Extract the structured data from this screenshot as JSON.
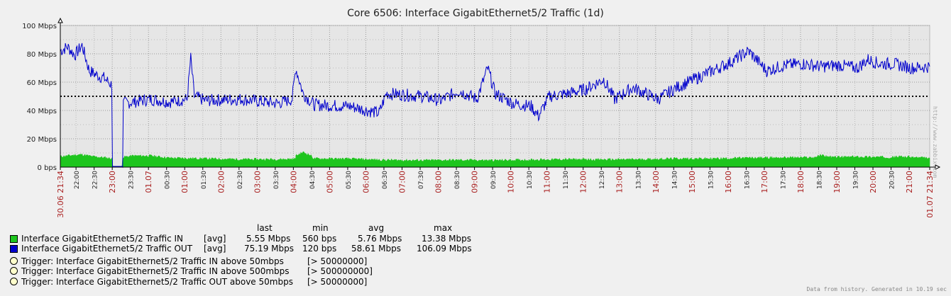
{
  "chart_data": {
    "type": "area",
    "title": "Core 6506: Interface GigabitEthernet5/2 Traffic  (1d)",
    "y_unit": "bps",
    "ylim": [
      0,
      100000000
    ],
    "yticks": [
      "0 bps",
      "20 Mbps",
      "40 Mbps",
      "60 Mbps",
      "80 Mbps",
      "100 Mbps"
    ],
    "grid": true,
    "x_tick_labels": [
      {
        "label": "30.06 21:34",
        "major": true
      },
      {
        "label": "22:00",
        "major": false
      },
      {
        "label": "22:30",
        "major": false
      },
      {
        "label": "23:00",
        "major": true
      },
      {
        "label": "23:30",
        "major": false
      },
      {
        "label": "01.07",
        "major": true
      },
      {
        "label": "00:30",
        "major": false
      },
      {
        "label": "01:00",
        "major": true
      },
      {
        "label": "01:30",
        "major": false
      },
      {
        "label": "02:00",
        "major": true
      },
      {
        "label": "02:30",
        "major": false
      },
      {
        "label": "03:00",
        "major": true
      },
      {
        "label": "03:30",
        "major": false
      },
      {
        "label": "04:00",
        "major": true
      },
      {
        "label": "04:30",
        "major": false
      },
      {
        "label": "05:00",
        "major": true
      },
      {
        "label": "05:30",
        "major": false
      },
      {
        "label": "06:00",
        "major": true
      },
      {
        "label": "06:30",
        "major": false
      },
      {
        "label": "07:00",
        "major": true
      },
      {
        "label": "07:30",
        "major": false
      },
      {
        "label": "08:00",
        "major": true
      },
      {
        "label": "08:30",
        "major": false
      },
      {
        "label": "09:00",
        "major": true
      },
      {
        "label": "09:30",
        "major": false
      },
      {
        "label": "10:00",
        "major": true
      },
      {
        "label": "10:30",
        "major": false
      },
      {
        "label": "11:00",
        "major": true
      },
      {
        "label": "11:30",
        "major": false
      },
      {
        "label": "12:00",
        "major": true
      },
      {
        "label": "12:30",
        "major": false
      },
      {
        "label": "13:00",
        "major": true
      },
      {
        "label": "13:30",
        "major": false
      },
      {
        "label": "14:00",
        "major": true
      },
      {
        "label": "14:30",
        "major": false
      },
      {
        "label": "15:00",
        "major": true
      },
      {
        "label": "15:30",
        "major": false
      },
      {
        "label": "16:00",
        "major": true
      },
      {
        "label": "16:30",
        "major": false
      },
      {
        "label": "17:00",
        "major": true
      },
      {
        "label": "17:30",
        "major": false
      },
      {
        "label": "18:00",
        "major": true
      },
      {
        "label": "18:30",
        "major": false
      },
      {
        "label": "19:00",
        "major": true
      },
      {
        "label": "19:30",
        "major": false
      },
      {
        "label": "20:00",
        "major": true
      },
      {
        "label": "20:30",
        "major": false
      },
      {
        "label": "21:00",
        "major": true
      },
      {
        "label": "01.07 21:34",
        "major": true
      }
    ],
    "series": [
      {
        "name": "Interface GigabitEthernet5/2 Traffic IN",
        "kind": "filled",
        "color": "#1ec51e",
        "agg": "[avg]",
        "last": "5.55 Mbps",
        "min": "560 bps",
        "avg": "5.76 Mbps",
        "max": "13.38 Mbps",
        "points_mbps": [
          [
            0,
            7.5
          ],
          [
            0.3,
            8.3
          ],
          [
            0.6,
            8.9
          ],
          [
            0.9,
            7.4
          ],
          [
            1.2,
            6.8
          ],
          [
            1.43,
            6.0
          ],
          [
            1.45,
            0.2
          ],
          [
            1.7,
            0.2
          ],
          [
            1.72,
            7.0
          ],
          [
            2.0,
            8.0
          ],
          [
            2.5,
            8.0
          ],
          [
            3.0,
            6.5
          ],
          [
            4.0,
            6.0
          ],
          [
            5.0,
            5.5
          ],
          [
            6.0,
            5.5
          ],
          [
            6.5,
            5.8
          ],
          [
            6.5,
            8.0
          ],
          [
            6.7,
            10.5
          ],
          [
            6.9,
            8.5
          ],
          [
            7.0,
            6.0
          ],
          [
            8.0,
            5.8
          ],
          [
            9.0,
            5.0
          ],
          [
            10.0,
            4.8
          ],
          [
            11.0,
            5.0
          ],
          [
            12.0,
            4.8
          ],
          [
            13.0,
            5.2
          ],
          [
            14.0,
            5.5
          ],
          [
            15.0,
            5.3
          ],
          [
            16.0,
            5.5
          ],
          [
            17.0,
            6.0
          ],
          [
            18.0,
            6.0
          ],
          [
            19.0,
            6.5
          ],
          [
            20.0,
            6.8
          ],
          [
            20.8,
            6.8
          ],
          [
            21.0,
            8.5
          ],
          [
            21.3,
            7.0
          ],
          [
            22.0,
            7.3
          ],
          [
            23.0,
            7.0
          ],
          [
            23.2,
            7.5
          ],
          [
            24.0,
            6.2
          ]
        ]
      },
      {
        "name": "Interface GigabitEthernet5/2 Traffic OUT",
        "kind": "line",
        "color": "#0000cc",
        "agg": "[avg]",
        "last": "75.19 Mbps",
        "min": "120 bps",
        "avg": "58.61 Mbps",
        "max": "106.09 Mbps",
        "points_mbps": [
          [
            0,
            82
          ],
          [
            0.2,
            85
          ],
          [
            0.4,
            79
          ],
          [
            0.6,
            86
          ],
          [
            0.8,
            68
          ],
          [
            1.0,
            65
          ],
          [
            1.2,
            63
          ],
          [
            1.42,
            58
          ],
          [
            1.44,
            0.5
          ],
          [
            1.72,
            0.5
          ],
          [
            1.74,
            45
          ],
          [
            2.0,
            46
          ],
          [
            2.5,
            48
          ],
          [
            3.0,
            46
          ],
          [
            3.5,
            48
          ],
          [
            3.6,
            77
          ],
          [
            3.7,
            50
          ],
          [
            4.0,
            47
          ],
          [
            5.0,
            48
          ],
          [
            6.0,
            45
          ],
          [
            6.4,
            48
          ],
          [
            6.5,
            70
          ],
          [
            6.7,
            52
          ],
          [
            7.0,
            44
          ],
          [
            8.0,
            43
          ],
          [
            8.8,
            38
          ],
          [
            9.0,
            52
          ],
          [
            10.0,
            50
          ],
          [
            10.5,
            47
          ],
          [
            11.0,
            54
          ],
          [
            11.5,
            48
          ],
          [
            11.8,
            70
          ],
          [
            12.0,
            52
          ],
          [
            12.5,
            45
          ],
          [
            13.0,
            43
          ],
          [
            13.2,
            36
          ],
          [
            13.5,
            50
          ],
          [
            14.0,
            52
          ],
          [
            14.5,
            55
          ],
          [
            15.0,
            62
          ],
          [
            15.3,
            48
          ],
          [
            15.8,
            56
          ],
          [
            16.5,
            48
          ],
          [
            17.0,
            56
          ],
          [
            17.5,
            62
          ],
          [
            18.0,
            68
          ],
          [
            18.5,
            74
          ],
          [
            19.0,
            82
          ],
          [
            19.5,
            68
          ],
          [
            20.0,
            72
          ],
          [
            20.5,
            73
          ],
          [
            21.0,
            71
          ],
          [
            21.5,
            72
          ],
          [
            22.0,
            70
          ],
          [
            22.3,
            76
          ],
          [
            22.6,
            73
          ],
          [
            23.0,
            73
          ],
          [
            23.5,
            70
          ],
          [
            24.0,
            71
          ]
        ]
      }
    ],
    "threshold": {
      "value_mbps": 50,
      "color": "#000000",
      "style": "dotted"
    },
    "legend": {
      "header": [
        "last",
        "min",
        "avg",
        "max"
      ],
      "position": "bottom-left"
    },
    "triggers": [
      {
        "name": "Trigger: Interface GigabitEthernet5/2 Traffic IN above 50mbps",
        "condition": "[> 50000000]"
      },
      {
        "name": "Trigger: Interface GigabitEthernet5/2 Traffic IN above 500mbps",
        "condition": "[> 500000000]"
      },
      {
        "name": "Trigger: Interface GigabitEthernet5/2 Traffic OUT above 50mbps",
        "condition": "[> 50000000]"
      }
    ]
  },
  "footer": "Data from history. Generated in 10.19 sec",
  "sidetext": "http://www.zabbix.com"
}
